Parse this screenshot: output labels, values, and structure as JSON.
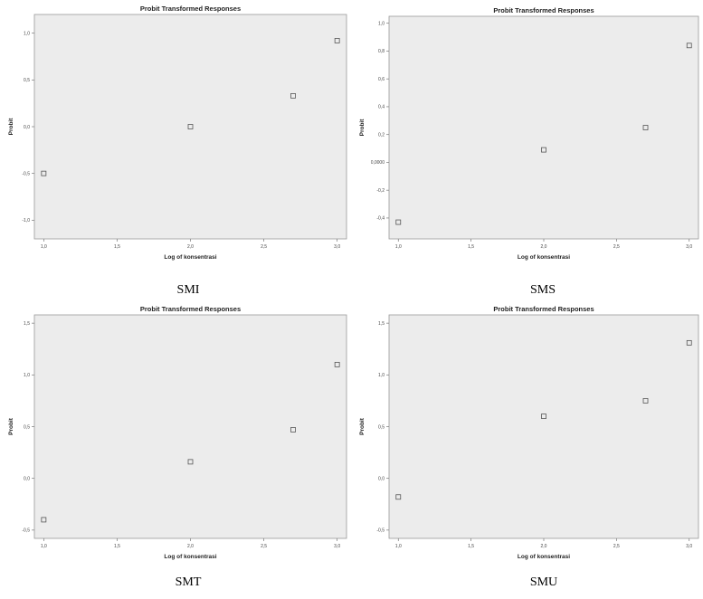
{
  "chart_data": [
    {
      "type": "scatter",
      "title": "Probit Transformed Responses",
      "xlabel": "Log of konsentrasi",
      "ylabel": "Probit",
      "caption": "SMI",
      "xlim": [
        1.0,
        3.0
      ],
      "ylim": [
        -1.2,
        1.2
      ],
      "xticks": [
        1.0,
        1.5,
        2.0,
        2.5,
        3.0
      ],
      "xtick_labels": [
        "1,0",
        "1,5",
        "2,0",
        "2,5",
        "3,0"
      ],
      "yticks": [
        -1.0,
        -0.5,
        0.0,
        0.5,
        1.0
      ],
      "ytick_labels": [
        "-1,0",
        "-0,5",
        "0,0",
        "0,5",
        "1,0"
      ],
      "grid": false,
      "points": [
        {
          "x": 1.0,
          "y": -0.5
        },
        {
          "x": 2.0,
          "y": 0.0
        },
        {
          "x": 2.7,
          "y": 0.33
        },
        {
          "x": 3.0,
          "y": 0.92
        }
      ],
      "colors": {
        "plot_bg": "#ececec",
        "marker_stroke": "#555555"
      }
    },
    {
      "type": "scatter",
      "title": "Probit Transformed Responses",
      "xlabel": "Log of konsentrasi",
      "ylabel": "Probit",
      "caption": "SMS",
      "xlim": [
        1.0,
        3.0
      ],
      "ylim": [
        -0.55,
        1.05
      ],
      "xticks": [
        1.0,
        1.5,
        2.0,
        2.5,
        3.0
      ],
      "xtick_labels": [
        "1,0",
        "1,5",
        "2,0",
        "2,5",
        "3,0"
      ],
      "yticks": [
        -0.4,
        -0.2,
        0.0,
        0.2,
        0.4,
        0.6,
        0.8,
        1.0
      ],
      "ytick_labels": [
        "-0,4",
        "-0,2",
        "0,0000",
        "0,2",
        "0,4",
        "0,6",
        "0,8",
        "1,0"
      ],
      "grid": false,
      "points": [
        {
          "x": 1.0,
          "y": -0.43
        },
        {
          "x": 2.0,
          "y": 0.09
        },
        {
          "x": 2.7,
          "y": 0.25
        },
        {
          "x": 3.0,
          "y": 0.84
        }
      ],
      "colors": {
        "plot_bg": "#ececec",
        "marker_stroke": "#555555"
      }
    },
    {
      "type": "scatter",
      "title": "Probit Transformed Responses",
      "xlabel": "Log of konsentrasi",
      "ylabel": "Probit",
      "caption": "SMT",
      "xlim": [
        1.0,
        3.0
      ],
      "ylim": [
        -0.58,
        1.58
      ],
      "xticks": [
        1.0,
        1.5,
        2.0,
        2.5,
        3.0
      ],
      "xtick_labels": [
        "1,0",
        "1,5",
        "2,0",
        "2,5",
        "3,0"
      ],
      "yticks": [
        -0.5,
        0.0,
        0.5,
        1.0,
        1.5
      ],
      "ytick_labels": [
        "-0,5",
        "0,0",
        "0,5",
        "1,0",
        "1,5"
      ],
      "grid": false,
      "points": [
        {
          "x": 1.0,
          "y": -0.4
        },
        {
          "x": 2.0,
          "y": 0.16
        },
        {
          "x": 2.7,
          "y": 0.47
        },
        {
          "x": 3.0,
          "y": 1.1
        }
      ],
      "colors": {
        "plot_bg": "#ececec",
        "marker_stroke": "#555555"
      }
    },
    {
      "type": "scatter",
      "title": "Probit Transformed Responses",
      "xlabel": "Log of konsentrasi",
      "ylabel": "Probit",
      "caption": "SMU",
      "xlim": [
        1.0,
        3.0
      ],
      "ylim": [
        -0.58,
        1.58
      ],
      "xticks": [
        1.0,
        1.5,
        2.0,
        2.5,
        3.0
      ],
      "xtick_labels": [
        "1,0",
        "1,5",
        "2,0",
        "2,5",
        "3,0"
      ],
      "yticks": [
        -0.5,
        0.0,
        0.5,
        1.0,
        1.5
      ],
      "ytick_labels": [
        "-0,5",
        "0,0",
        "0,5",
        "1,0",
        "1,5"
      ],
      "grid": false,
      "points": [
        {
          "x": 1.0,
          "y": -0.18
        },
        {
          "x": 2.0,
          "y": 0.6
        },
        {
          "x": 2.7,
          "y": 0.75
        },
        {
          "x": 3.0,
          "y": 1.31
        }
      ],
      "colors": {
        "plot_bg": "#ececec",
        "marker_stroke": "#555555"
      }
    }
  ]
}
